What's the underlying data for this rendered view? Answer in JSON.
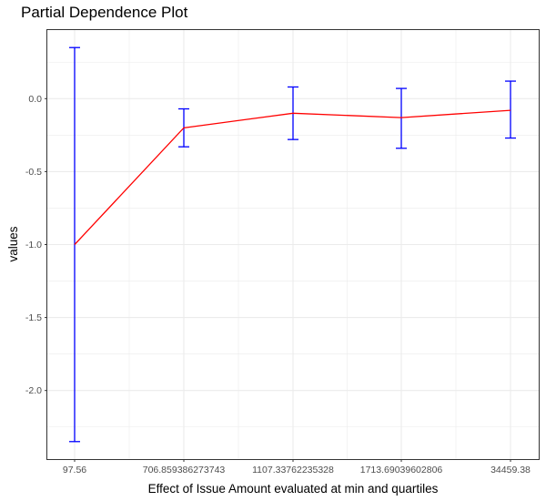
{
  "chart_data": {
    "type": "line",
    "title": "Partial Dependence Plot",
    "xlabel": "Effect of Issue Amount evaluated at min and quartiles",
    "ylabel": "values",
    "categories": [
      "97.56",
      "706.859386273743",
      "1107.33762235328",
      "1713.69039602806",
      "34459.38"
    ],
    "series": [
      {
        "values": [
          -1.0,
          -0.2,
          -0.1,
          -0.13,
          -0.08
        ],
        "lower": [
          -2.35,
          -0.33,
          -0.28,
          -0.34,
          -0.27
        ],
        "upper": [
          0.35,
          -0.07,
          0.08,
          0.07,
          0.12
        ]
      }
    ],
    "yticks": [
      0.0,
      -0.5,
      -1.0,
      -1.5,
      -2.0
    ],
    "ytick_labels": [
      "0.0",
      "-0.5",
      "-1.0",
      "-1.5",
      "-2.0"
    ],
    "ylim": [
      -2.47,
      0.47
    ],
    "grid": true,
    "colors": {
      "line": "#ff0000",
      "error_bars": "#0000ff",
      "grid": "#ebebeb",
      "panel_border": "#333333"
    }
  }
}
